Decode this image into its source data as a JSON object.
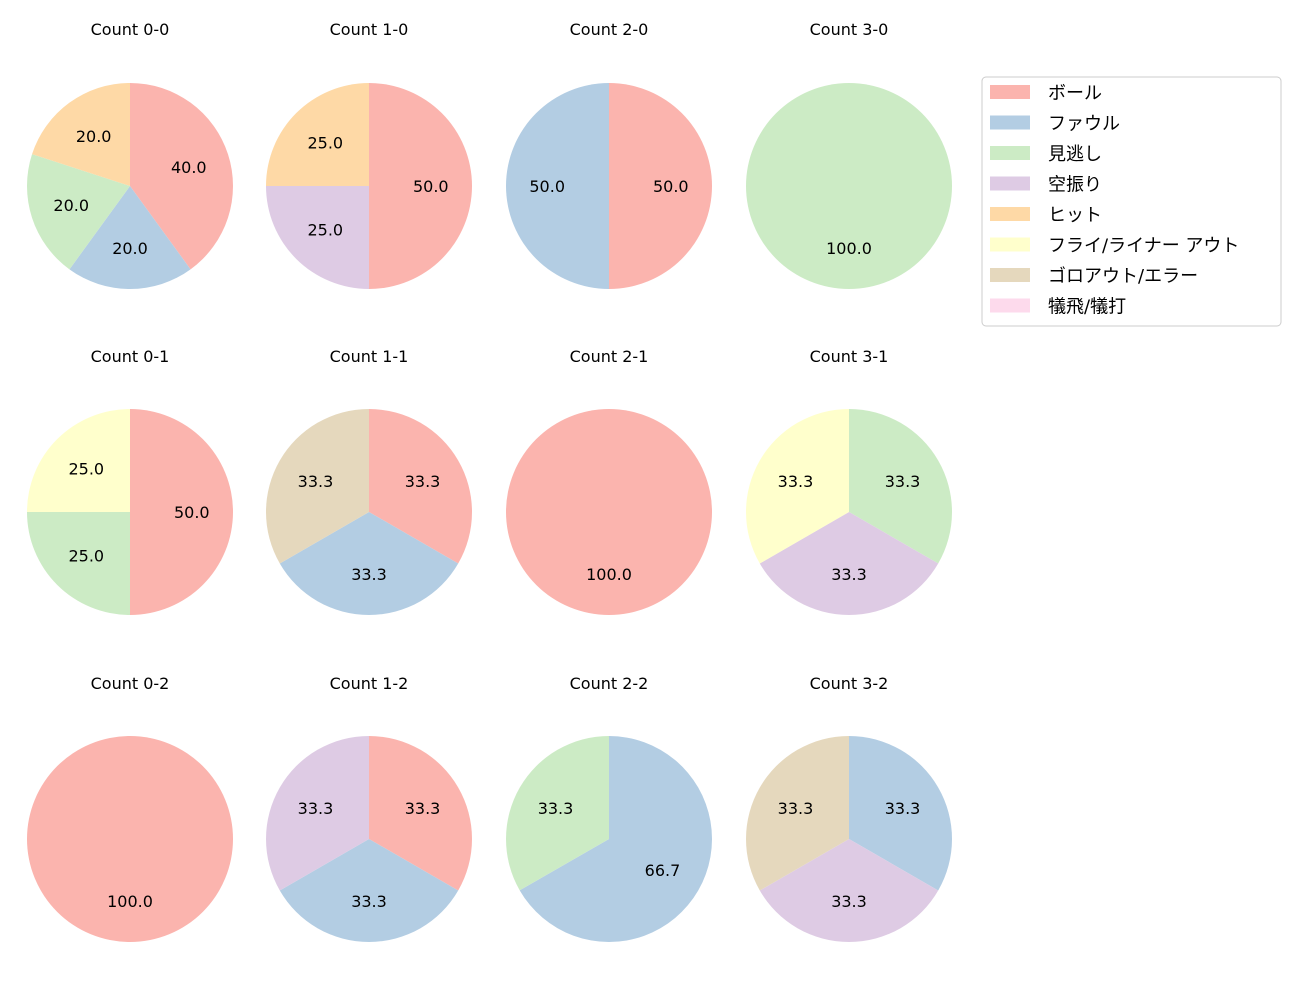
{
  "chart_data": {
    "type": "pie",
    "legend": {
      "placement": "top-right",
      "entries": [
        "ボール",
        "ファウル",
        "見逃し",
        "空振り",
        "ヒット",
        "フライ/ライナー アウト",
        "ゴロアウト/エラー",
        "犠飛/犠打"
      ]
    },
    "colors": [
      "#fbb4ae",
      "#b3cde3",
      "#ccebc5",
      "#decbe4",
      "#fed9a6",
      "#ffffcc",
      "#e5d8bd",
      "#fddaec"
    ],
    "start_angle_deg": 90,
    "direction": "clockwise",
    "value_format": "%.1f",
    "charts": [
      {
        "title": "Count 0-0",
        "values": [
          40,
          20,
          20,
          0,
          20,
          0,
          0,
          0
        ]
      },
      {
        "title": "Count 1-0",
        "values": [
          50,
          0,
          0,
          25,
          25,
          0,
          0,
          0
        ]
      },
      {
        "title": "Count 2-0",
        "values": [
          50,
          50,
          0,
          0,
          0,
          0,
          0,
          0
        ]
      },
      {
        "title": "Count 3-0",
        "values": [
          0,
          0,
          100,
          0,
          0,
          0,
          0,
          0
        ]
      },
      {
        "title": "Count 0-1",
        "values": [
          50,
          0,
          25,
          0,
          0,
          25,
          0,
          0
        ]
      },
      {
        "title": "Count 1-1",
        "values": [
          33.3,
          33.3,
          0,
          0,
          0,
          0,
          33.3,
          0
        ]
      },
      {
        "title": "Count 2-1",
        "values": [
          100,
          0,
          0,
          0,
          0,
          0,
          0,
          0
        ]
      },
      {
        "title": "Count 3-1",
        "values": [
          0,
          0,
          33.3,
          33.3,
          0,
          33.3,
          0,
          0
        ]
      },
      {
        "title": "Count 0-2",
        "values": [
          100,
          0,
          0,
          0,
          0,
          0,
          0,
          0
        ]
      },
      {
        "title": "Count 1-2",
        "values": [
          33.3,
          33.3,
          0,
          33.3,
          0,
          0,
          0,
          0
        ]
      },
      {
        "title": "Count 2-2",
        "values": [
          0,
          66.7,
          33.3,
          0,
          0,
          0,
          0,
          0
        ]
      },
      {
        "title": "Count 3-2",
        "values": [
          0,
          33.3,
          0,
          33.3,
          0,
          0,
          33.3,
          0
        ]
      }
    ]
  }
}
